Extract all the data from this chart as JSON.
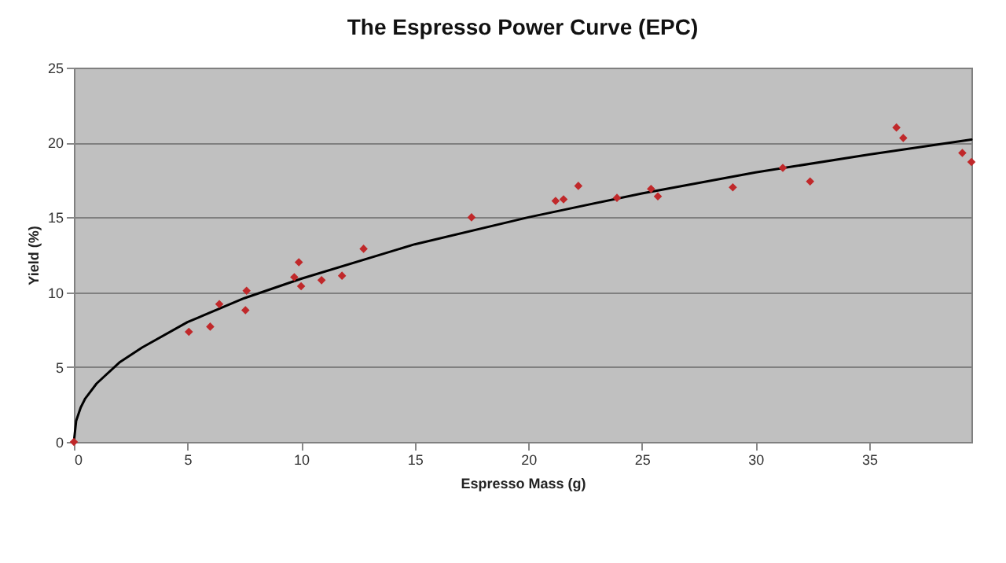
{
  "chart_data": {
    "type": "scatter",
    "title": "The Espresso Power Curve (EPC)",
    "xlabel": "Espresso Mass (g)",
    "ylabel": "Yield (%)",
    "xlim": [
      0,
      39.5
    ],
    "xticks": [
      0,
      5,
      10,
      15,
      20,
      25,
      30,
      35
    ],
    "ylim": [
      0,
      25
    ],
    "yticks": [
      0,
      5,
      10,
      15,
      20,
      25
    ],
    "grid": "y",
    "marker": "diamond",
    "legend": false,
    "series": [
      {
        "type": "scatter",
        "color": "#c0282a",
        "x": [
          0,
          5.06,
          6.0,
          6.4,
          7.55,
          7.6,
          9.7,
          9.9,
          10.0,
          10.9,
          11.8,
          12.75,
          17.5,
          21.2,
          21.55,
          22.2,
          23.9,
          25.4,
          25.7,
          29.0,
          31.2,
          32.4,
          36.2,
          36.5,
          39.1,
          39.5
        ],
        "values": [
          0,
          7.35,
          7.7,
          9.2,
          8.8,
          10.1,
          11.0,
          12.0,
          10.4,
          10.8,
          11.1,
          12.9,
          15.0,
          16.1,
          16.2,
          17.1,
          16.3,
          16.9,
          16.4,
          17.0,
          18.3,
          17.4,
          21.0,
          20.3,
          19.3,
          18.7
        ]
      },
      {
        "type": "line",
        "color": "#000000",
        "marker": "none",
        "x": [
          0,
          0.1,
          0.3,
          0.5,
          1,
          2,
          3,
          5,
          7.5,
          10,
          15,
          20,
          25,
          30,
          35,
          39.5
        ],
        "values": [
          0,
          1.4,
          2.3,
          2.9,
          3.9,
          5.3,
          6.3,
          8.0,
          9.6,
          10.9,
          13.2,
          15.0,
          16.6,
          18.0,
          19.2,
          20.2
        ]
      }
    ]
  }
}
